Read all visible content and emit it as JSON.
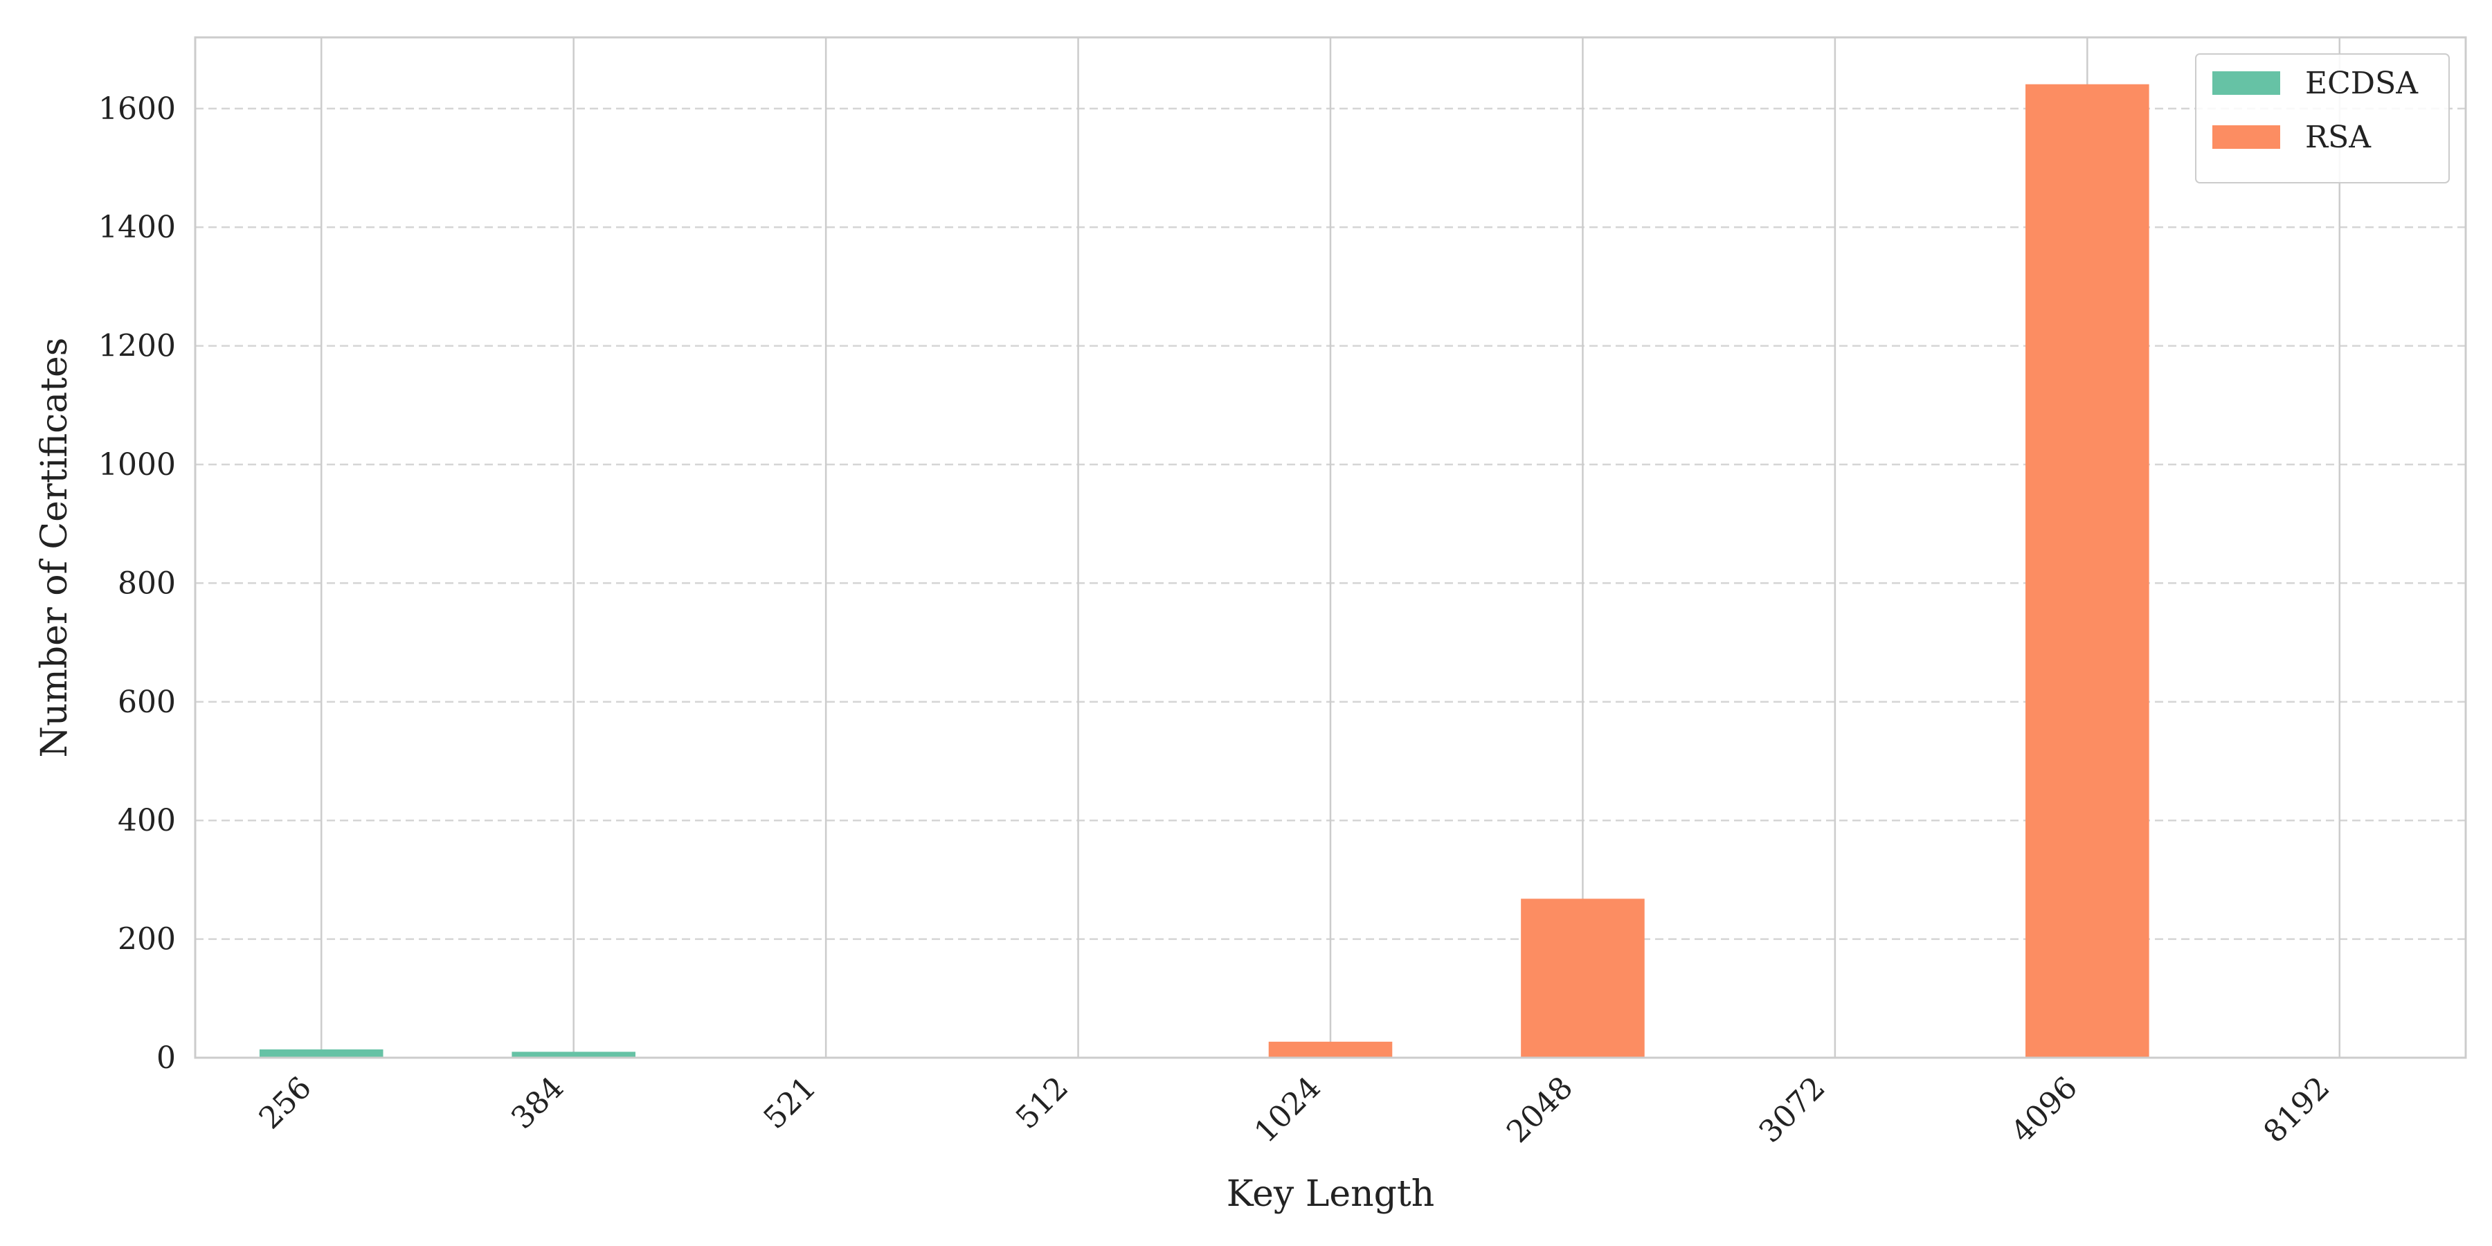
{
  "chart_data": {
    "type": "bar",
    "stacked": true,
    "xlabel": "Key Length",
    "ylabel": "Number of Certificates",
    "categories": [
      "256",
      "384",
      "521",
      "512",
      "1024",
      "2048",
      "3072",
      "4096",
      "8192"
    ],
    "series": [
      {
        "name": "ECDSA",
        "color": "#66c2a5",
        "values": [
          14,
          10,
          0,
          0,
          0,
          0,
          0,
          0,
          0
        ]
      },
      {
        "name": "RSA",
        "color": "#fc8d62",
        "values": [
          0,
          0,
          0,
          0,
          27,
          268,
          1,
          1641,
          1
        ]
      }
    ],
    "ylim": [
      0,
      1720
    ],
    "yticks": [
      0,
      200,
      400,
      600,
      800,
      1000,
      1200,
      1400,
      1600
    ],
    "grid": {
      "y": true,
      "y_style": "dashed",
      "x": true
    },
    "legend": "top-right"
  }
}
